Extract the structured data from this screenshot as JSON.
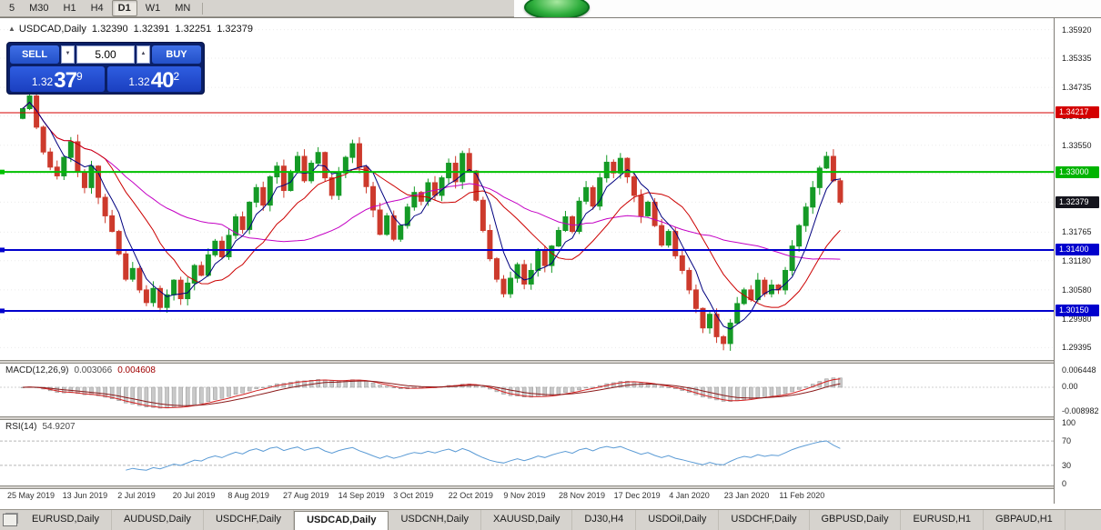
{
  "toolbar": {
    "timeframes": [
      {
        "label": "5",
        "active": false
      },
      {
        "label": "M30",
        "active": false
      },
      {
        "label": "H1",
        "active": false
      },
      {
        "label": "H4",
        "active": false
      },
      {
        "label": "D1",
        "active": true
      },
      {
        "label": "W1",
        "active": false
      },
      {
        "label": "MN",
        "active": false
      }
    ]
  },
  "chart_header": {
    "symbol": "USDCAD,Daily",
    "open": "1.32390",
    "high": "1.32391",
    "low": "1.32251",
    "close": "1.32379"
  },
  "trade_panel": {
    "sell_label": "SELL",
    "buy_label": "BUY",
    "lot_value": "5.00",
    "spin_up_glyph": "▲",
    "spin_down_glyph": "▼",
    "bid": {
      "prefix": "1.32",
      "big": "37",
      "sup": "9"
    },
    "ask": {
      "prefix": "1.32",
      "big": "40",
      "sup": "2"
    }
  },
  "price_axis": {
    "labels": [
      {
        "text": "1.35920",
        "price": 1.3592
      },
      {
        "text": "1.35335",
        "price": 1.35335
      },
      {
        "text": "1.34735",
        "price": 1.34735
      },
      {
        "text": "1.34150",
        "price": 1.3415
      },
      {
        "text": "1.33550",
        "price": 1.3355
      },
      {
        "text": "1.32965",
        "price": 1.32965
      },
      {
        "text": "1.32380",
        "price": 1.3238
      },
      {
        "text": "1.31765",
        "price": 1.31765
      },
      {
        "text": "1.31180",
        "price": 1.3118
      },
      {
        "text": "1.30580",
        "price": 1.3058
      },
      {
        "text": "1.29980",
        "price": 1.2998
      },
      {
        "text": "1.29395",
        "price": 1.29395
      }
    ],
    "line_labels": [
      {
        "text": "1.34217",
        "price": 1.34217,
        "color": "#d40000"
      },
      {
        "text": "1.33000",
        "price": 1.33,
        "color": "#00b400"
      },
      {
        "text": "1.31400",
        "price": 1.314,
        "color": "#0000cd"
      },
      {
        "text": "1.30150",
        "price": 1.3015,
        "color": "#0000cd"
      }
    ],
    "current_label": {
      "text": "1.32379",
      "price": 1.32379,
      "color": "#15151d"
    }
  },
  "dates": [
    "25 May 2019",
    "13 Jun 2019",
    "2 Jul 2019",
    "20 Jul 2019",
    "8 Aug 2019",
    "27 Aug 2019",
    "14 Sep 2019",
    "3 Oct 2019",
    "22 Oct 2019",
    "9 Nov 2019",
    "28 Nov 2019",
    "17 Dec 2019",
    "4 Jan 2020",
    "23 Jan 2020",
    "11 Feb 2020"
  ],
  "macd": {
    "title": "MACD(12,26,9)",
    "value_main": "0.003066",
    "value_signal": "0.004608",
    "axis_labels": [
      {
        "text": "0.006448",
        "pos": "top"
      },
      {
        "text": "0.00",
        "pos": "zero"
      },
      {
        "text": "-0.008982",
        "pos": "bottom"
      }
    ]
  },
  "rsi": {
    "title": "RSI(14)",
    "value": "54.9207",
    "axis_labels": [
      {
        "text": "100",
        "value": 100
      },
      {
        "text": "70",
        "value": 70
      },
      {
        "text": "30",
        "value": 30
      },
      {
        "text": "0",
        "value": 0
      }
    ],
    "levels": [
      70,
      30
    ]
  },
  "tabs": [
    {
      "label": "EURUSD,Daily",
      "active": false
    },
    {
      "label": "AUDUSD,Daily",
      "active": false
    },
    {
      "label": "USDCHF,Daily",
      "active": false
    },
    {
      "label": "USDCAD,Daily",
      "active": true
    },
    {
      "label": "USDCNH,Daily",
      "active": false
    },
    {
      "label": "XAUUSD,Daily",
      "active": false
    },
    {
      "label": "DJ30,H4",
      "active": false
    },
    {
      "label": "USDOil,Daily",
      "active": false
    },
    {
      "label": "USDCHF,Daily",
      "active": false
    },
    {
      "label": "GBPUSD,Daily",
      "active": false
    },
    {
      "label": "EURUSD,H1",
      "active": false
    },
    {
      "label": "GBPAUD,H1",
      "active": false
    }
  ],
  "chart_data": {
    "type": "candlestick",
    "symbol": "USDCAD",
    "timeframe": "Daily",
    "price_range": [
      1.292,
      1.3616
    ],
    "current_price": 1.32379,
    "first_open": 1.341,
    "closes": [
      1.343,
      1.3456,
      1.3392,
      1.3341,
      1.331,
      1.3292,
      1.333,
      1.3362,
      1.33,
      1.3268,
      1.3312,
      1.3248,
      1.321,
      1.3178,
      1.3132,
      1.308,
      1.3102,
      1.3058,
      1.3032,
      1.3061,
      1.3022,
      1.3048,
      1.3078,
      1.304,
      1.3072,
      1.3108,
      1.3088,
      1.313,
      1.3158,
      1.3126,
      1.317,
      1.3208,
      1.3182,
      1.3238,
      1.3268,
      1.3232,
      1.329,
      1.3312,
      1.3262,
      1.33,
      1.3332,
      1.3282,
      1.3318,
      1.334,
      1.3288,
      1.3252,
      1.3298,
      1.333,
      1.3358,
      1.331,
      1.327,
      1.3222,
      1.3172,
      1.321,
      1.3162,
      1.319,
      1.3228,
      1.3258,
      1.324,
      1.3278,
      1.3252,
      1.3288,
      1.3318,
      1.328,
      1.3338,
      1.3302,
      1.3242,
      1.318,
      1.3122,
      1.308,
      1.305,
      1.3082,
      1.311,
      1.307,
      1.3098,
      1.3138,
      1.3108,
      1.3148,
      1.318,
      1.3208,
      1.3178,
      1.324,
      1.3268,
      1.323,
      1.3288,
      1.332,
      1.3298,
      1.3328,
      1.329,
      1.3252,
      1.321,
      1.3238,
      1.319,
      1.315,
      1.3178,
      1.3128,
      1.3098,
      1.3058,
      1.302,
      1.298,
      1.3008,
      1.2962,
      1.2948,
      1.299,
      1.303,
      1.3058,
      1.3038,
      1.3078,
      1.305,
      1.3068,
      1.3058,
      1.3098,
      1.3148,
      1.319,
      1.3228,
      1.3268,
      1.3308,
      1.3332,
      1.3282,
      1.3238
    ],
    "hlines": [
      {
        "price": 1.34217,
        "color": "#d40000",
        "width": 1
      },
      {
        "price": 1.33,
        "color": "#00c000",
        "width": 2
      },
      {
        "price": 1.314,
        "color": "#0000cd",
        "width": 2
      },
      {
        "price": 1.3015,
        "color": "#0000cd",
        "width": 2
      }
    ],
    "ma_periods": {
      "fast": 5,
      "mid": 13,
      "slow": 30
    },
    "indicators": {
      "macd": {
        "fast": 12,
        "slow": 26,
        "signal": 9,
        "shown_main": 0.003066,
        "shown_signal": 0.004608
      },
      "rsi": {
        "period": 14,
        "shown_value": 54.9207
      }
    },
    "colors": {
      "up": "#159a26",
      "down": "#cd3a2c",
      "ma_fast": "#00007f",
      "ma_mid": "#cc0000",
      "ma_slow": "#c400c4",
      "macd_hist_fill": "#c9c9c9",
      "macd_hist_stroke": "#939393",
      "macd_line": "#d42020",
      "macd_signal": "#8b1a1a",
      "rsi": "#5b9bd5",
      "grid": "#ebebeb",
      "level_dash": "#b6b6b6"
    }
  }
}
